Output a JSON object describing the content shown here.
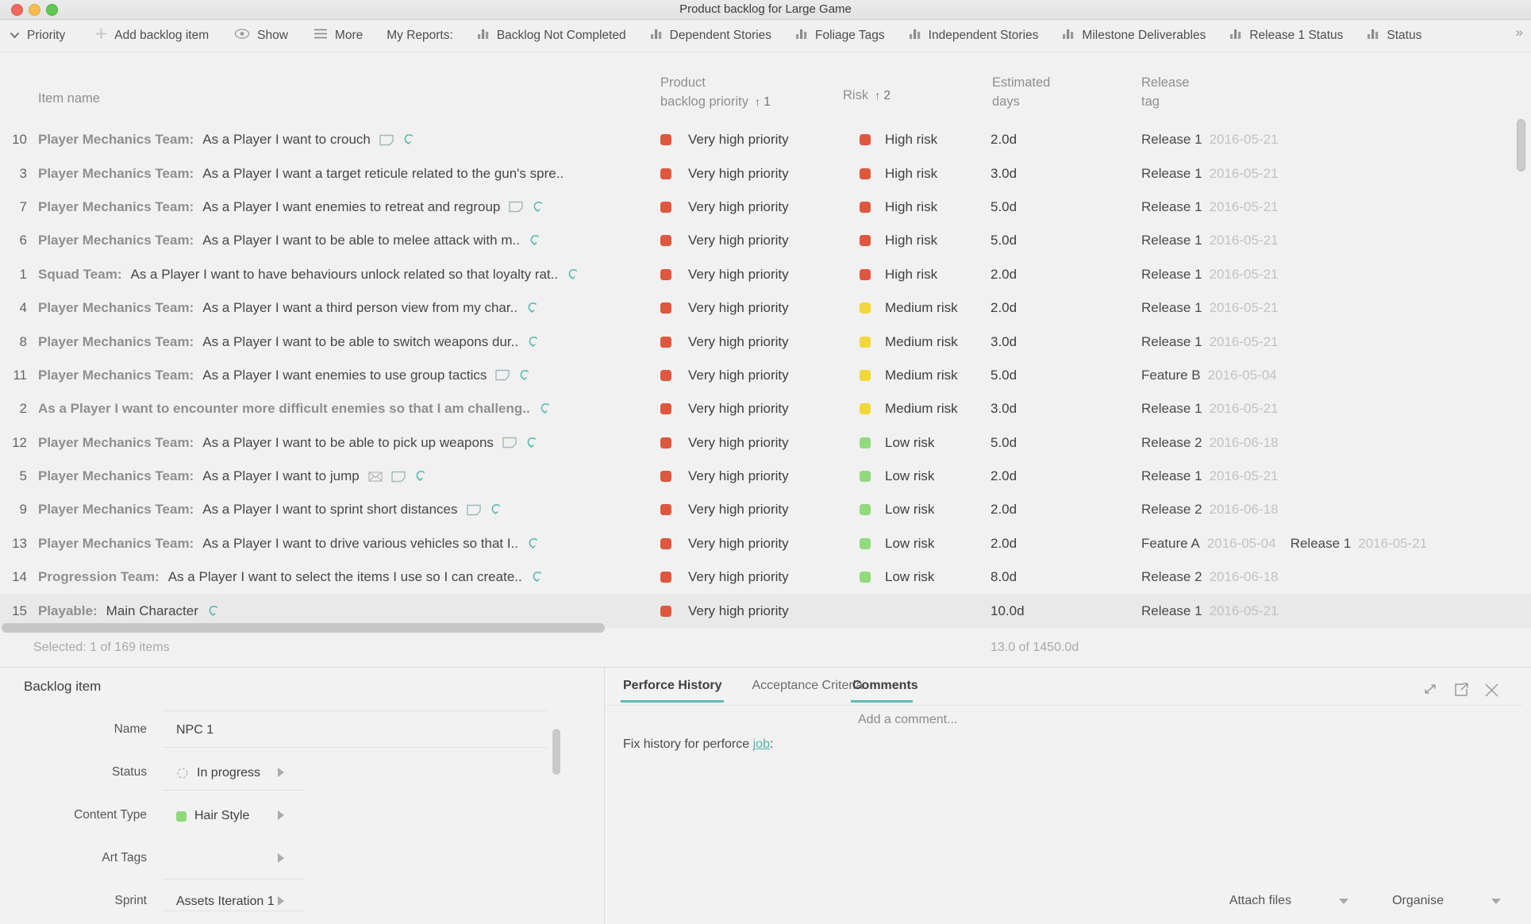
{
  "window": {
    "title": "Product backlog for Large Game"
  },
  "toolbar": {
    "items": [
      {
        "label": "Priority",
        "icon": "chevron-down"
      },
      {
        "label": "Add backlog item",
        "icon": "plus"
      },
      {
        "label": "Show",
        "icon": "eye"
      },
      {
        "label": "More",
        "icon": "hamburger"
      }
    ],
    "my_reports_label": "My Reports:",
    "reports": [
      "Backlog Not Completed",
      "Dependent Stories",
      "Foliage Tags",
      "Independent Stories",
      "Milestone Deliverables",
      "Release 1 Status",
      "Status"
    ],
    "overflow": "»"
  },
  "table": {
    "headers": {
      "item_name": "Item name",
      "priority_line1": "Product",
      "priority_line2": "backlog priority",
      "sort_arrow": "↑",
      "priority_sort": "1",
      "risk": "Risk",
      "risk_sort": "2",
      "days_line1": "Estimated",
      "days_line2": "days",
      "release_line1": "Release",
      "release_line2": "tag"
    },
    "rows": [
      {
        "num": "10",
        "prefix": "Player Mechanics Team:",
        "text": "As a Player I want to crouch",
        "icons": [
          "note",
          "hook"
        ],
        "priority": {
          "label": "Very high priority",
          "color": "#e0573f"
        },
        "risk": {
          "label": "High risk",
          "color": "#e0573f"
        },
        "days": "2.0d",
        "releases": [
          {
            "name": "Release 1",
            "date": "2016-05-21"
          }
        ]
      },
      {
        "num": "3",
        "prefix": "Player Mechanics Team:",
        "text": "As a Player I want a target reticule related to the gun's spre..",
        "icons": [],
        "priority": {
          "label": "Very high priority",
          "color": "#e0573f"
        },
        "risk": {
          "label": "High risk",
          "color": "#e0573f"
        },
        "days": "3.0d",
        "releases": [
          {
            "name": "Release 1",
            "date": "2016-05-21"
          }
        ]
      },
      {
        "num": "7",
        "prefix": "Player Mechanics Team:",
        "text": "As a Player I want enemies to retreat and regroup",
        "icons": [
          "note",
          "hook"
        ],
        "priority": {
          "label": "Very high priority",
          "color": "#e0573f"
        },
        "risk": {
          "label": "High risk",
          "color": "#e0573f"
        },
        "days": "5.0d",
        "releases": [
          {
            "name": "Release 1",
            "date": "2016-05-21"
          }
        ]
      },
      {
        "num": "6",
        "prefix": "Player Mechanics Team:",
        "text": "As a Player I want to be able to melee attack with m..",
        "icons": [
          "hook"
        ],
        "priority": {
          "label": "Very high priority",
          "color": "#e0573f"
        },
        "risk": {
          "label": "High risk",
          "color": "#e0573f"
        },
        "days": "5.0d",
        "releases": [
          {
            "name": "Release 1",
            "date": "2016-05-21"
          }
        ]
      },
      {
        "num": "1",
        "prefix": "Squad Team:",
        "text": "As a Player I want to have behaviours unlock related so that loyalty rat..",
        "icons": [
          "hook"
        ],
        "priority": {
          "label": "Very high priority",
          "color": "#e0573f"
        },
        "risk": {
          "label": "High risk",
          "color": "#e0573f"
        },
        "days": "2.0d",
        "releases": [
          {
            "name": "Release 1",
            "date": "2016-05-21"
          }
        ]
      },
      {
        "num": "4",
        "prefix": "Player Mechanics Team:",
        "text": "As a Player I want a third person view from my char..",
        "icons": [
          "hook"
        ],
        "priority": {
          "label": "Very high priority",
          "color": "#e0573f"
        },
        "risk": {
          "label": "Medium risk",
          "color": "#f2d73b"
        },
        "days": "2.0d",
        "releases": [
          {
            "name": "Release 1",
            "date": "2016-05-21"
          }
        ]
      },
      {
        "num": "8",
        "prefix": "Player Mechanics Team:",
        "text": "As a Player I want to be able to switch weapons dur..",
        "icons": [
          "hook"
        ],
        "priority": {
          "label": "Very high priority",
          "color": "#e0573f"
        },
        "risk": {
          "label": "Medium risk",
          "color": "#f2d73b"
        },
        "days": "3.0d",
        "releases": [
          {
            "name": "Release 1",
            "date": "2016-05-21"
          }
        ]
      },
      {
        "num": "11",
        "prefix": "Player Mechanics Team:",
        "text": "As a Player I want enemies to use group tactics",
        "icons": [
          "note",
          "hook"
        ],
        "priority": {
          "label": "Very high priority",
          "color": "#e0573f"
        },
        "risk": {
          "label": "Medium risk",
          "color": "#f2d73b"
        },
        "days": "5.0d",
        "releases": [
          {
            "name": "Feature B",
            "date": "2016-05-04"
          }
        ]
      },
      {
        "num": "2",
        "prefix": "",
        "bold": true,
        "text": "As a Player I want to encounter more difficult enemies so that I am challeng..",
        "icons": [
          "hook"
        ],
        "priority": {
          "label": "Very high priority",
          "color": "#e0573f"
        },
        "risk": {
          "label": "Medium risk",
          "color": "#f2d73b"
        },
        "days": "3.0d",
        "releases": [
          {
            "name": "Release 1",
            "date": "2016-05-21"
          }
        ]
      },
      {
        "num": "12",
        "prefix": "Player Mechanics Team:",
        "text": "As a Player I want to be able to pick up weapons",
        "icons": [
          "note",
          "hook"
        ],
        "priority": {
          "label": "Very high priority",
          "color": "#e0573f"
        },
        "risk": {
          "label": "Low risk",
          "color": "#92da7d"
        },
        "days": "5.0d",
        "releases": [
          {
            "name": "Release 2",
            "date": "2016-06-18"
          }
        ]
      },
      {
        "num": "5",
        "prefix": "Player Mechanics Team:",
        "text": "As a Player I want to jump",
        "icons": [
          "envelope",
          "note",
          "hook"
        ],
        "priority": {
          "label": "Very high priority",
          "color": "#e0573f"
        },
        "risk": {
          "label": "Low risk",
          "color": "#92da7d"
        },
        "days": "2.0d",
        "releases": [
          {
            "name": "Release 1",
            "date": "2016-05-21"
          }
        ]
      },
      {
        "num": "9",
        "prefix": "Player Mechanics Team:",
        "text": "As a Player I want to sprint short distances",
        "icons": [
          "note",
          "hook"
        ],
        "priority": {
          "label": "Very high priority",
          "color": "#e0573f"
        },
        "risk": {
          "label": "Low risk",
          "color": "#92da7d"
        },
        "days": "2.0d",
        "releases": [
          {
            "name": "Release 2",
            "date": "2016-06-18"
          }
        ]
      },
      {
        "num": "13",
        "prefix": "Player Mechanics Team:",
        "text": "As a Player I want to drive various vehicles so that I..",
        "icons": [
          "hook"
        ],
        "priority": {
          "label": "Very high priority",
          "color": "#e0573f"
        },
        "risk": {
          "label": "Low risk",
          "color": "#92da7d"
        },
        "days": "2.0d",
        "releases": [
          {
            "name": "Feature A",
            "date": "2016-05-04"
          },
          {
            "name": "Release 1",
            "date": "2016-05-21"
          }
        ]
      },
      {
        "num": "14",
        "prefix": "Progression Team:",
        "text": "As a Player I want to select the items I use so I can create..",
        "icons": [
          "hook"
        ],
        "priority": {
          "label": "Very high priority",
          "color": "#e0573f"
        },
        "risk": {
          "label": "Low risk",
          "color": "#92da7d"
        },
        "days": "8.0d",
        "releases": [
          {
            "name": "Release 2",
            "date": "2016-06-18"
          }
        ]
      },
      {
        "num": "15",
        "prefix": "Playable:",
        "text": "Main Character",
        "icons": [
          "hook"
        ],
        "selected": true,
        "priority": {
          "label": "Very high priority",
          "color": "#e0573f"
        },
        "risk": null,
        "days": "10.0d",
        "releases": [
          {
            "name": "Release 1",
            "date": "2016-05-21"
          }
        ]
      }
    ]
  },
  "status_bar": {
    "selected": "Selected: 1 of 169 items",
    "days_summary": "13.0 of 1450.0d"
  },
  "detail_panel": {
    "title": "Backlog item",
    "fields": [
      {
        "label": "Name",
        "value": "NPC 1",
        "icon": null
      },
      {
        "label": "Status",
        "value": "In progress",
        "icon": "progress-circle"
      },
      {
        "label": "Content Type",
        "value": "Hair Style",
        "icon": "green-square"
      },
      {
        "label": "Art Tags",
        "value": "",
        "icon": null
      },
      {
        "label": "Sprint",
        "value": "Assets Iteration 1",
        "icon": null
      }
    ]
  },
  "right_panel": {
    "tabs": [
      {
        "label": "Perforce History",
        "active": true
      },
      {
        "label": "Acceptance Criteria",
        "active": false
      }
    ],
    "comments_title": "Comments",
    "comment_placeholder": "Add a comment...",
    "perforce_text": "Fix history for perforce ",
    "perforce_link": "job",
    "perforce_colon": ":",
    "attach_files_label": "Attach files",
    "organise_label": "Organise"
  },
  "colors": {
    "accent_teal": "#5fbcb2",
    "priority_red": "#e0573f",
    "risk_yellow": "#f2d73b",
    "risk_green": "#92da7d",
    "traffic_red": "#ee6a5f",
    "traffic_yellow": "#f5bd4f",
    "traffic_green": "#62c554"
  }
}
